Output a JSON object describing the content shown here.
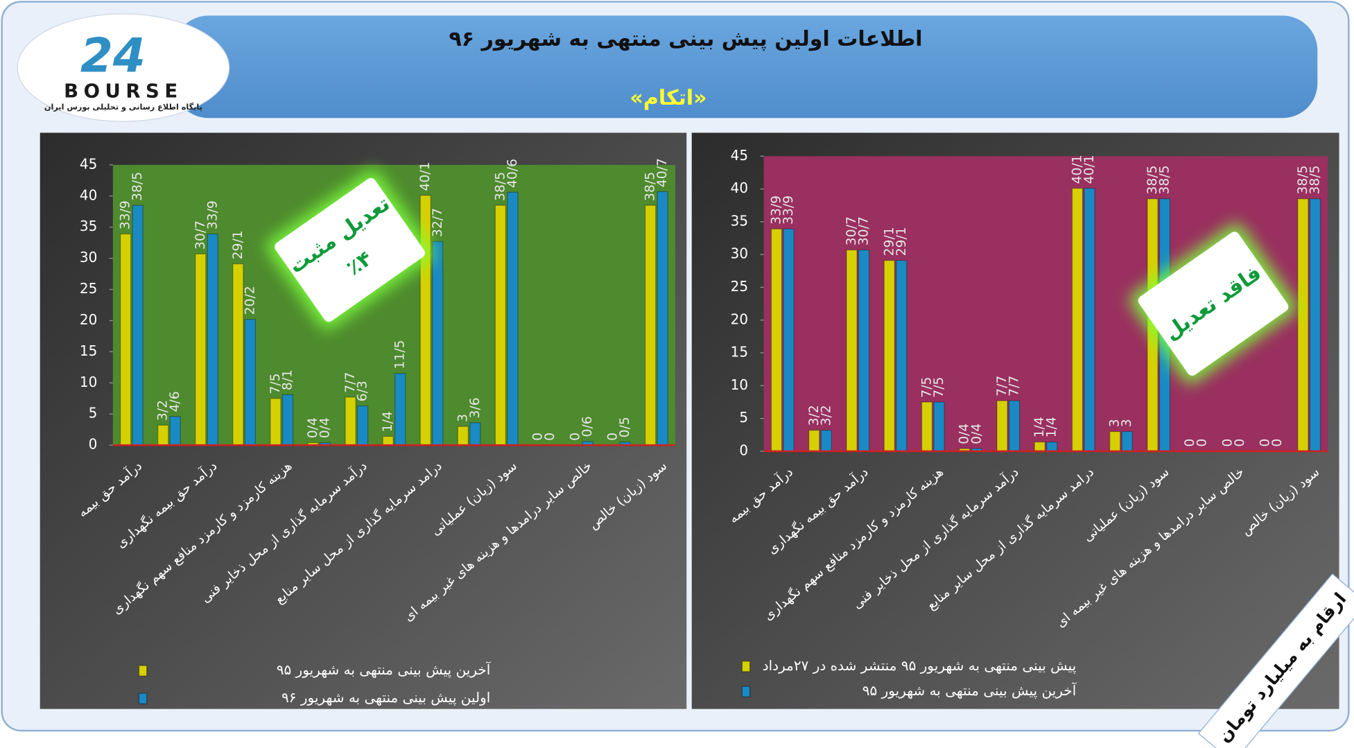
{
  "header": {
    "title": "اطلاعات اولین پیش بینی منتهی به شهریور ۹۶",
    "subtitle": "«اتکام»",
    "logo_number": "24",
    "logo_text": "BOURSE",
    "logo_caption": "پایگاه اطلاع رسانی و تحلیلی بورس ایران"
  },
  "note": "ارقام به میلیارد تومان",
  "chart_data": [
    {
      "type": "bar",
      "background": "#4e8a2e",
      "categories": [
        "درآمد حق بیمه",
        null,
        "درآمد حق بیمه نگهداری",
        null,
        "هزینه کارمزد و کارمزد منافع سهم نگهداری",
        null,
        "درآمد سرمایه گذاری از محل ذخایر فنی",
        null,
        "درامد سرمایه گذاری از محل سایر منابع",
        null,
        "سود (زیان) عملیاتی",
        null,
        "خالص سایر درامدها و هزینه های غیر بیمه ای",
        null,
        "سود (زیان) خالص"
      ],
      "series": [
        {
          "name": "آخرین پیش بینی منتهی به شهریور ۹۵",
          "color": "#d6d000",
          "values": [
            33.9,
            3.2,
            30.7,
            29.1,
            7.5,
            0.4,
            7.7,
            1.4,
            40.1,
            3,
            38.5,
            0,
            0,
            0,
            38.5
          ],
          "value_labels": [
            "33/9",
            "3/2",
            "30/7",
            "29/1",
            "7/5",
            "0/4",
            "7/7",
            "1/4",
            "40/1",
            "3",
            "38/5",
            "0",
            "0",
            "0",
            "38/5"
          ]
        },
        {
          "name": "اولین پیش بینی منتهی به شهریور ۹۶",
          "color": "#1a8ac4",
          "values": [
            38.5,
            4.6,
            33.9,
            20.2,
            8.1,
            0.4,
            6.3,
            11.5,
            32.7,
            3.6,
            40.6,
            0,
            0.6,
            0.5,
            40.7
          ],
          "value_labels": [
            "38/5",
            "4/6",
            "33/9",
            "20/2",
            "8/1",
            "0/4",
            "6/3",
            "11/5",
            "32/7",
            "3/6",
            "40/6",
            "0",
            "0/6",
            "0/5",
            "40/7"
          ]
        }
      ],
      "ylim": [
        0,
        45
      ],
      "yticks": [
        0,
        5,
        10,
        15,
        20,
        25,
        30,
        35,
        40,
        45
      ],
      "annotations": [
        "تعدیل مثبت",
        "٪۴"
      ]
    },
    {
      "type": "bar",
      "background": "#99305f",
      "categories": [
        "درآمد حق بیمه",
        null,
        "درآمد حق بیمه نگهداری",
        null,
        "هزینه کارمزد و کارمزد منافع سهم نگهداری",
        null,
        "درآمد سرمایه گذاری از محل ذخایر فنی",
        null,
        "درامد سرمایه گذاری از محل سایر منابع",
        null,
        "سود (زیان) عملیاتی",
        null,
        "خالص سایر درامدها و هزینه های غیر بیمه ای",
        null,
        "سود (زیان) خالص"
      ],
      "series": [
        {
          "name": "پیش بینی منتهی به شهریور ۹۵ منتشر شده در ۲۷مرداد",
          "color": "#d6d000",
          "values": [
            33.9,
            3.2,
            30.7,
            29.1,
            7.5,
            0.4,
            7.7,
            1.4,
            40.1,
            3,
            38.5,
            0,
            0,
            0,
            38.5
          ],
          "value_labels": [
            "33/9",
            "3/2",
            "30/7",
            "29/1",
            "7/5",
            "0/4",
            "7/7",
            "1/4",
            "40/1",
            "3",
            "38/5",
            "0",
            "0",
            "0",
            "38/5"
          ]
        },
        {
          "name": "آخرین پیش بینی منتهی به شهریور ۹۵",
          "color": "#1a8ac4",
          "values": [
            33.9,
            3.2,
            30.7,
            29.1,
            7.5,
            0.4,
            7.7,
            1.4,
            40.1,
            3,
            38.5,
            0,
            0,
            0,
            38.5
          ],
          "value_labels": [
            "33/9",
            "3/2",
            "30/7",
            "29/1",
            "7/5",
            "0/4",
            "7/7",
            "1/4",
            "40/1",
            "3",
            "38/5",
            "0",
            "0",
            "0",
            "38/5"
          ]
        }
      ],
      "ylim": [
        0,
        45
      ],
      "yticks": [
        0,
        5,
        10,
        15,
        20,
        25,
        30,
        35,
        40,
        45
      ],
      "annotations": [
        "فاقد تعدیل"
      ]
    }
  ]
}
